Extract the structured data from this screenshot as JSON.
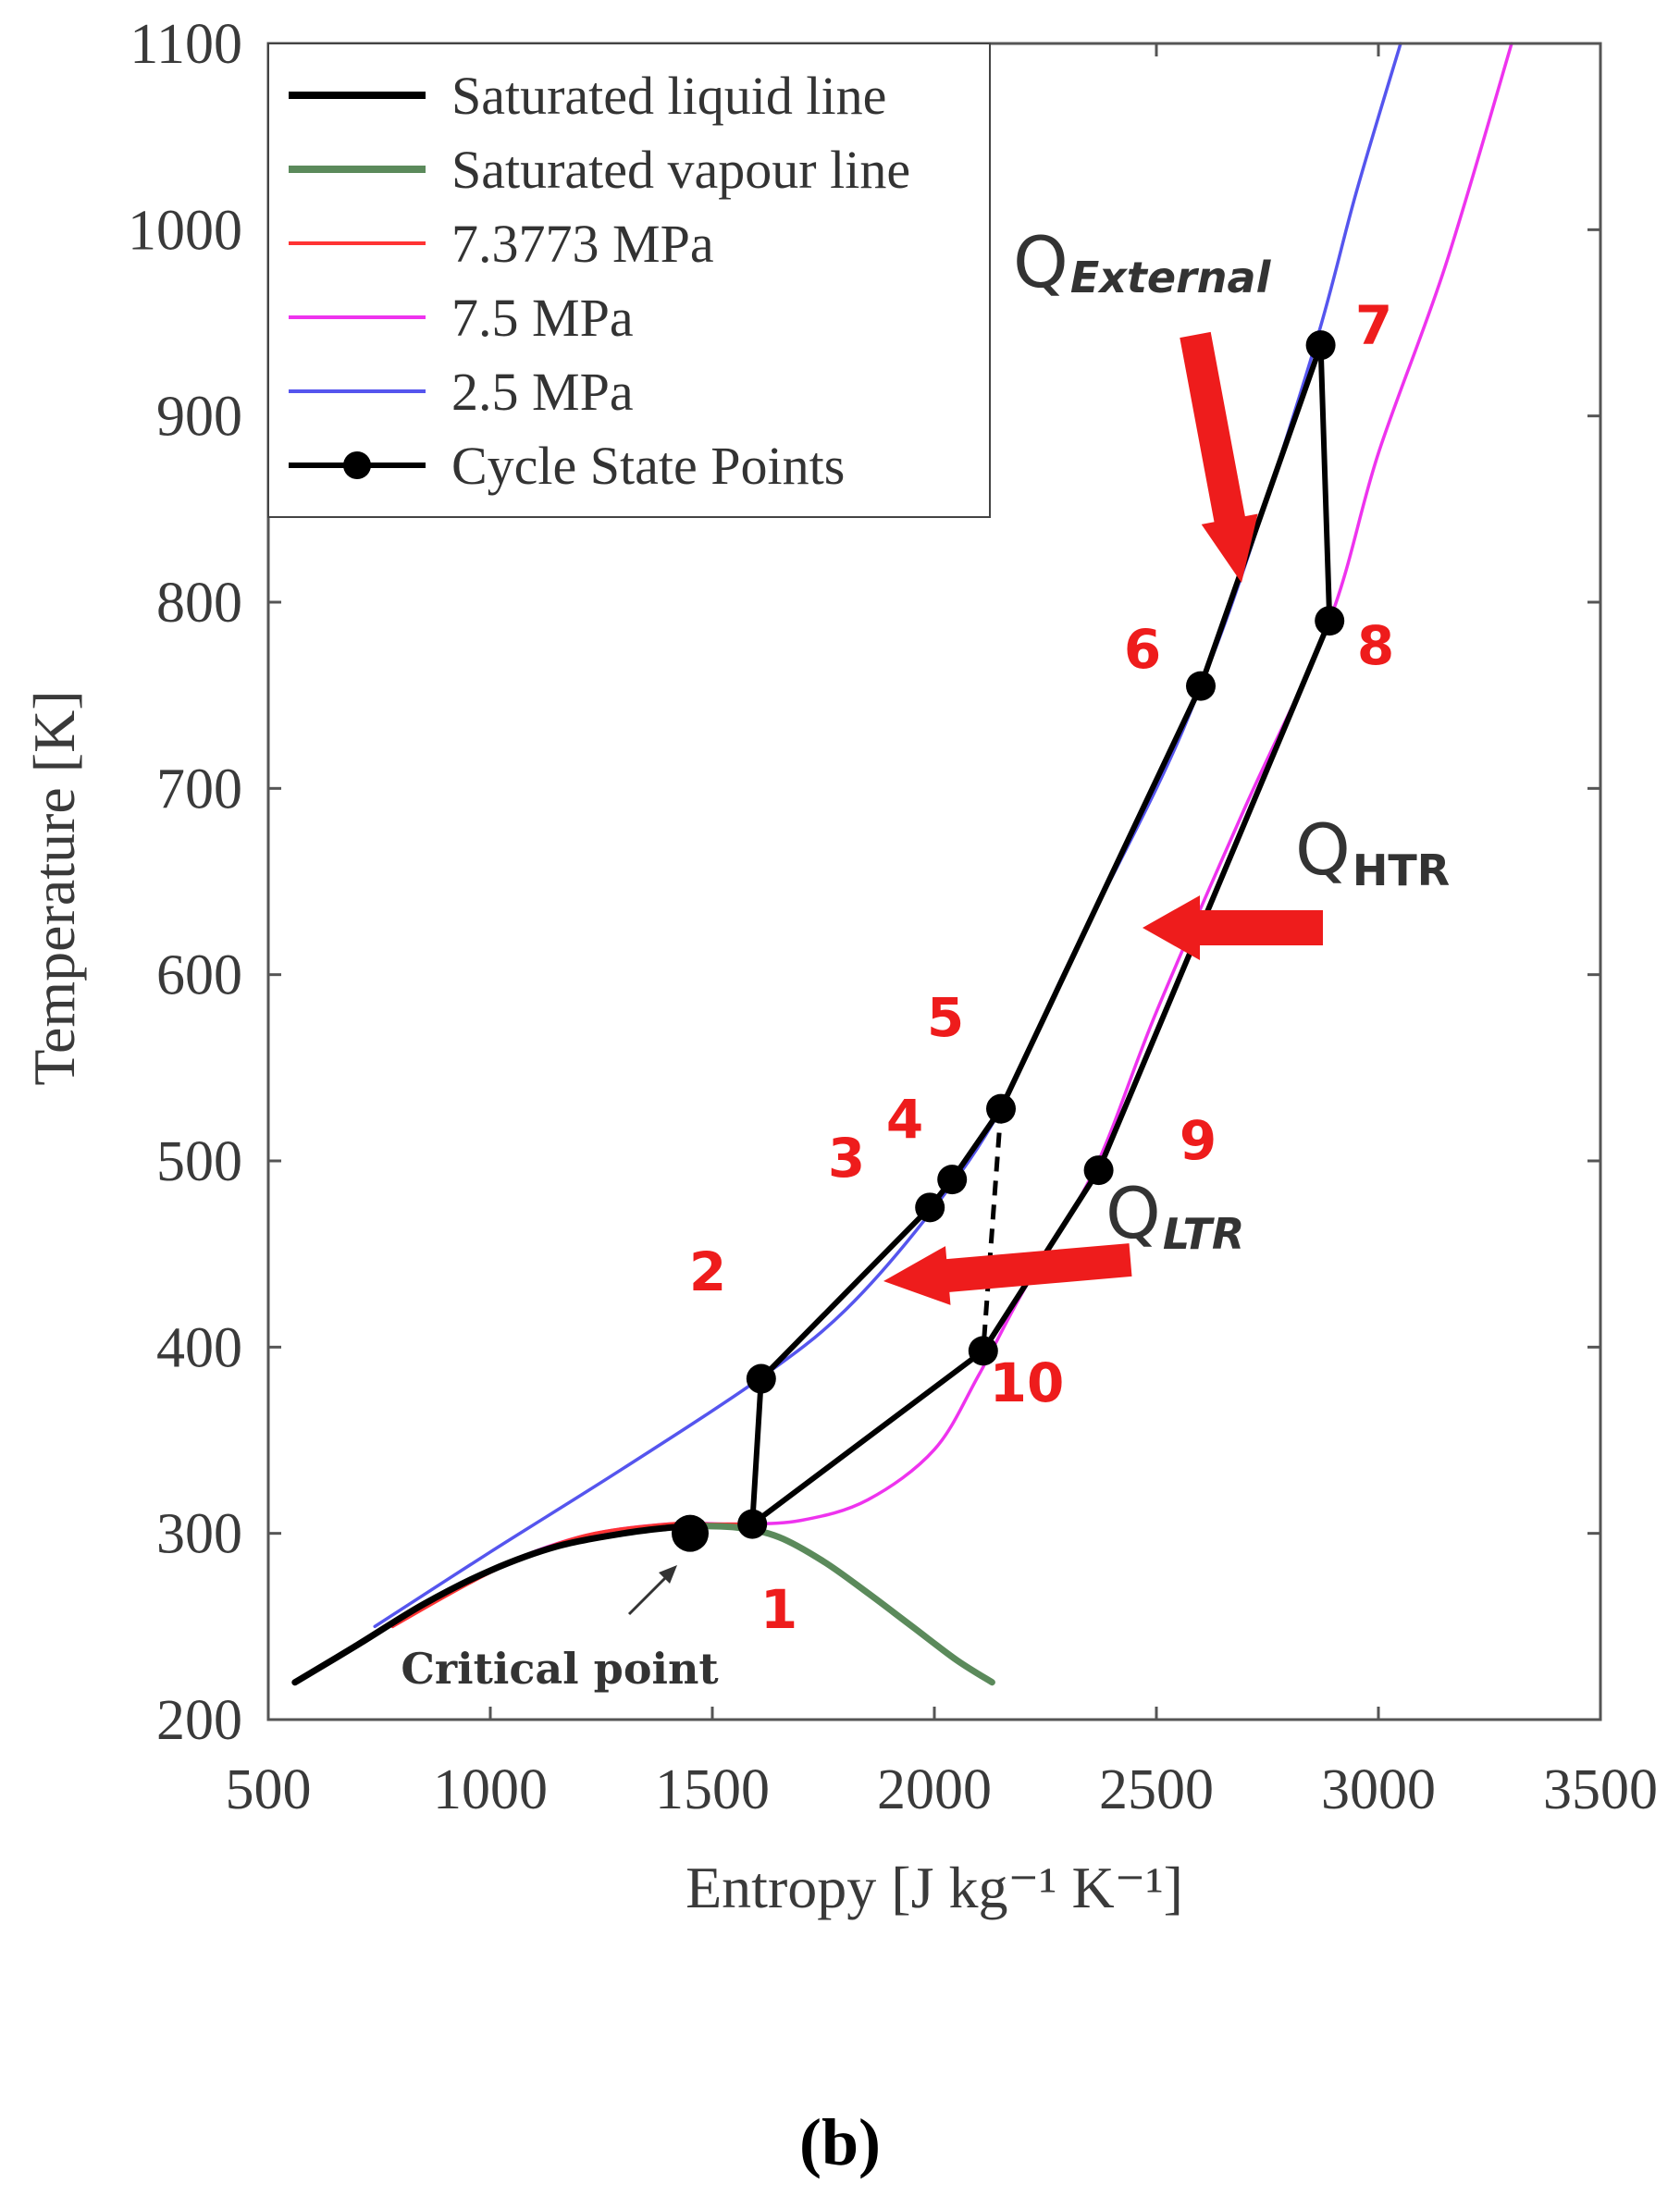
{
  "chart_data": {
    "type": "line",
    "title": "",
    "xlabel": "Entropy [J kg⁻¹ K⁻¹]",
    "ylabel": "Temperature [K]",
    "xlim": [
      500,
      3500
    ],
    "ylim": [
      200,
      1100
    ],
    "xticks": [
      500,
      1000,
      1500,
      2000,
      2500,
      3000,
      3500
    ],
    "yticks": [
      200,
      300,
      400,
      500,
      600,
      700,
      800,
      900,
      1000,
      1100
    ],
    "legend_position": "top-left",
    "series": [
      {
        "name": "Saturated liquid line",
        "color": "#000000",
        "x": [
          560,
          700,
          850,
          1000,
          1150,
          1300,
          1400,
          1460
        ],
        "y": [
          220,
          240,
          262,
          280,
          293,
          300,
          303,
          304
        ]
      },
      {
        "name": "Saturated vapour line",
        "color": "#5b8a5b",
        "x": [
          1460,
          1560,
          1650,
          1750,
          1850,
          1950,
          2050,
          2130
        ],
        "y": [
          304,
          303,
          298,
          285,
          268,
          250,
          232,
          220
        ]
      },
      {
        "name": "7.3773 MPa",
        "color": "#ff3333",
        "x": [
          780,
          1000,
          1200,
          1400,
          1500,
          1560
        ],
        "y": [
          250,
          279,
          298,
          305,
          305,
          305
        ]
      },
      {
        "name": "7.5 MPa",
        "color": "#ee33ee",
        "x": [
          780,
          1000,
          1200,
          1400,
          1560,
          1700,
          1850,
          2000,
          2100,
          2200,
          2360,
          2500,
          2700,
          2890,
          3000,
          3150,
          3300
        ],
        "y": [
          250,
          280,
          298,
          305,
          305,
          307,
          318,
          345,
          385,
          430,
          495,
          580,
          690,
          790,
          880,
          980,
          1100
        ]
      },
      {
        "name": "2.5 MPa",
        "color": "#5555ee",
        "x": [
          740,
          1000,
          1300,
          1600,
          1800,
          2000,
          2150,
          2300,
          2500,
          2600,
          2700,
          2860,
          2950,
          3050
        ],
        "y": [
          250,
          290,
          335,
          382,
          420,
          475,
          528,
          605,
          700,
          755,
          820,
          940,
          1020,
          1100
        ]
      },
      {
        "name": "Cycle State Points",
        "color": "#000000",
        "points": [
          {
            "label": "1",
            "x": 1590,
            "y": 305
          },
          {
            "label": "2",
            "x": 1610,
            "y": 383
          },
          {
            "label": "3",
            "x": 1990,
            "y": 475
          },
          {
            "label": "4",
            "x": 2040,
            "y": 490
          },
          {
            "label": "5",
            "x": 2150,
            "y": 528
          },
          {
            "label": "6",
            "x": 2600,
            "y": 755
          },
          {
            "label": "7",
            "x": 2870,
            "y": 938
          },
          {
            "label": "8",
            "x": 2890,
            "y": 790
          },
          {
            "label": "9",
            "x": 2370,
            "y": 495
          },
          {
            "label": "10",
            "x": 2110,
            "y": 398
          }
        ]
      }
    ],
    "critical_point": {
      "label": "Critical point",
      "x": 1450,
      "y": 300
    },
    "annotations": {
      "q_external": {
        "main": "Q",
        "sub": "External"
      },
      "q_htr": {
        "main": "Q",
        "sub": "HTR"
      },
      "q_ltr": {
        "main": "Q",
        "sub": "LTR"
      }
    },
    "panel_label": "(b)"
  }
}
